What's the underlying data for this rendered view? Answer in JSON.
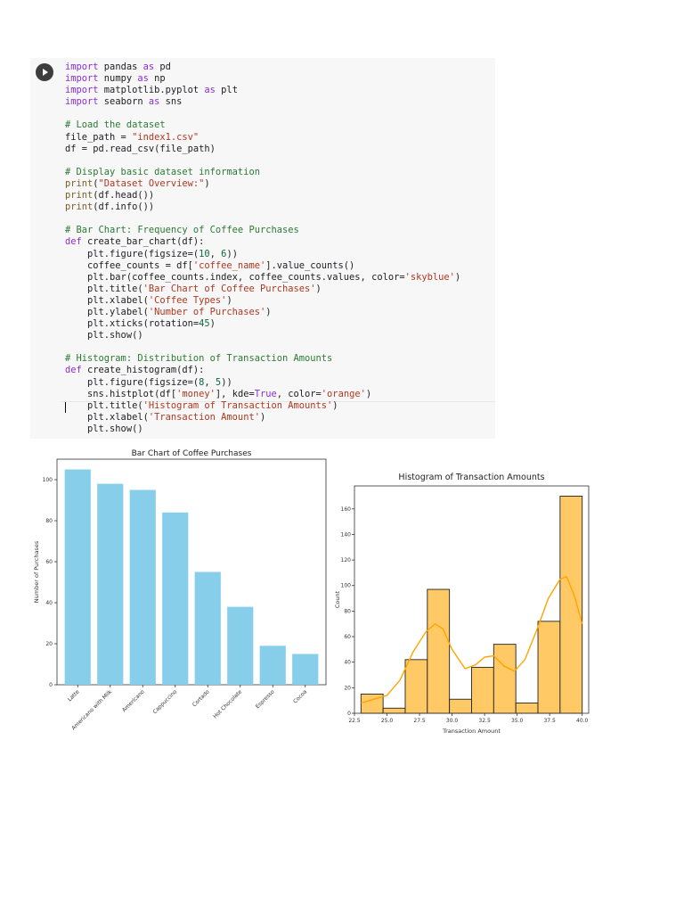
{
  "code_cell": {
    "run_button_icon": "play-icon",
    "lines": [
      [
        [
          "kw",
          "import"
        ],
        [
          "t",
          " pandas "
        ],
        [
          "kw",
          "as"
        ],
        [
          "t",
          " pd"
        ]
      ],
      [
        [
          "kw",
          "import"
        ],
        [
          "t",
          " numpy "
        ],
        [
          "kw",
          "as"
        ],
        [
          "t",
          " np"
        ]
      ],
      [
        [
          "kw",
          "import"
        ],
        [
          "t",
          " matplotlib.pyplot "
        ],
        [
          "kw",
          "as"
        ],
        [
          "t",
          " plt"
        ]
      ],
      [
        [
          "kw",
          "import"
        ],
        [
          "t",
          " seaborn "
        ],
        [
          "kw",
          "as"
        ],
        [
          "t",
          " sns"
        ]
      ],
      [
        [
          "t",
          ""
        ]
      ],
      [
        [
          "cm",
          "# Load the dataset"
        ]
      ],
      [
        [
          "t",
          "file_path = "
        ],
        [
          "str",
          "\"index1.csv\""
        ]
      ],
      [
        [
          "t",
          "df = pd.read_csv(file_path)"
        ]
      ],
      [
        [
          "t",
          ""
        ]
      ],
      [
        [
          "cm",
          "# Display basic dataset information"
        ]
      ],
      [
        [
          "bi",
          "print"
        ],
        [
          "t",
          "("
        ],
        [
          "str",
          "\"Dataset Overview:\""
        ],
        [
          "t",
          ")"
        ]
      ],
      [
        [
          "bi",
          "print"
        ],
        [
          "t",
          "(df.head())"
        ]
      ],
      [
        [
          "bi",
          "print"
        ],
        [
          "t",
          "(df.info())"
        ]
      ],
      [
        [
          "t",
          ""
        ]
      ],
      [
        [
          "cm",
          "# Bar Chart: Frequency of Coffee Purchases"
        ]
      ],
      [
        [
          "kw",
          "def"
        ],
        [
          "t",
          " create_bar_chart(df):"
        ]
      ],
      [
        [
          "t",
          "    plt.figure(figsize=("
        ],
        [
          "num",
          "10"
        ],
        [
          "t",
          ", "
        ],
        [
          "num",
          "6"
        ],
        [
          "t",
          "))"
        ]
      ],
      [
        [
          "t",
          "    coffee_counts = df["
        ],
        [
          "str",
          "'coffee_name'"
        ],
        [
          "t",
          "].value_counts()"
        ]
      ],
      [
        [
          "t",
          "    plt.bar(coffee_counts.index, coffee_counts.values, color="
        ],
        [
          "str",
          "'skyblue'"
        ],
        [
          "t",
          ")"
        ]
      ],
      [
        [
          "t",
          "    plt.title("
        ],
        [
          "str",
          "'Bar Chart of Coffee Purchases'"
        ],
        [
          "t",
          ")"
        ]
      ],
      [
        [
          "t",
          "    plt.xlabel("
        ],
        [
          "str",
          "'Coffee Types'"
        ],
        [
          "t",
          ")"
        ]
      ],
      [
        [
          "t",
          "    plt.ylabel("
        ],
        [
          "str",
          "'Number of Purchases'"
        ],
        [
          "t",
          ")"
        ]
      ],
      [
        [
          "t",
          "    plt.xticks(rotation="
        ],
        [
          "num",
          "45"
        ],
        [
          "t",
          ")"
        ]
      ],
      [
        [
          "t",
          "    plt.show()"
        ]
      ],
      [
        [
          "t",
          ""
        ]
      ],
      [
        [
          "cm",
          "# Histogram: Distribution of Transaction Amounts"
        ]
      ],
      [
        [
          "kw",
          "def"
        ],
        [
          "t",
          " create_histogram(df):"
        ]
      ],
      [
        [
          "t",
          "    plt.figure(figsize=("
        ],
        [
          "num",
          "8"
        ],
        [
          "t",
          ", "
        ],
        [
          "num",
          "5"
        ],
        [
          "t",
          "))"
        ]
      ],
      [
        [
          "t",
          "    sns.histplot(df["
        ],
        [
          "str",
          "'money'"
        ],
        [
          "t",
          "], kde="
        ],
        [
          "kw",
          "True"
        ],
        [
          "t",
          ", color="
        ],
        [
          "str",
          "'orange'"
        ],
        [
          "t",
          ")"
        ]
      ],
      [
        [
          "t",
          "    plt.title("
        ],
        [
          "str",
          "'Histogram of Transaction Amounts'"
        ],
        [
          "t",
          ")"
        ]
      ],
      [
        [
          "t",
          "    plt.xlabel("
        ],
        [
          "str",
          "'Transaction Amount'"
        ],
        [
          "t",
          ")"
        ]
      ],
      [
        [
          "t",
          "    plt.show()"
        ]
      ]
    ],
    "colors": {
      "background": "#f7f7f7",
      "keyword": "#8a2ed4",
      "string": "#b0371e",
      "comment": "#2b7a33"
    }
  },
  "chart_data": [
    {
      "type": "bar",
      "title": "Bar Chart of Coffee Purchases",
      "xlabel": "",
      "ylabel": "Number of Purchases",
      "categories": [
        "Latte",
        "Americano with Milk",
        "Americano",
        "Cappuccino",
        "Cortado",
        "Hot Chocolate",
        "Espresso",
        "Cocoa"
      ],
      "values": [
        105,
        98,
        95,
        84,
        55,
        38,
        19,
        15
      ],
      "ylim": [
        0,
        110
      ],
      "yticks": [
        0,
        20,
        40,
        60,
        80,
        100
      ],
      "grid": false,
      "color": "#87ceeb"
    },
    {
      "type": "bar",
      "subtype": "histogram",
      "title": "Histogram of Transaction Amounts",
      "xlabel": "Transaction Amount",
      "ylabel": "Count",
      "bin_edges": [
        23.0,
        24.7,
        26.4,
        28.1,
        29.8,
        31.5,
        33.2,
        34.9,
        36.6,
        38.3,
        40.0
      ],
      "counts": [
        15,
        4,
        42,
        97,
        11,
        36,
        54,
        8,
        72,
        170
      ],
      "kde": [
        [
          23.0,
          8
        ],
        [
          24.0,
          11
        ],
        [
          25.0,
          14
        ],
        [
          26.0,
          26
        ],
        [
          27.0,
          48
        ],
        [
          28.0,
          64
        ],
        [
          28.7,
          70
        ],
        [
          29.3,
          66
        ],
        [
          30.0,
          50
        ],
        [
          31.0,
          35
        ],
        [
          31.8,
          38
        ],
        [
          32.5,
          44
        ],
        [
          33.2,
          45
        ],
        [
          34.0,
          37
        ],
        [
          34.8,
          33
        ],
        [
          35.6,
          42
        ],
        [
          36.5,
          65
        ],
        [
          37.4,
          90
        ],
        [
          38.3,
          105
        ],
        [
          38.8,
          107
        ],
        [
          39.4,
          92
        ],
        [
          40.0,
          70
        ]
      ],
      "xlim": [
        22.5,
        40.5
      ],
      "ylim": [
        0,
        178
      ],
      "xticks": [
        "22.5",
        "25.0",
        "27.5",
        "30.0",
        "32.5",
        "35.0",
        "37.5",
        "40.0"
      ],
      "yticks": [
        0,
        20,
        40,
        60,
        80,
        100,
        120,
        140,
        160
      ],
      "grid": false,
      "color": "#ffc966",
      "kde_color": "#ffa500"
    }
  ]
}
